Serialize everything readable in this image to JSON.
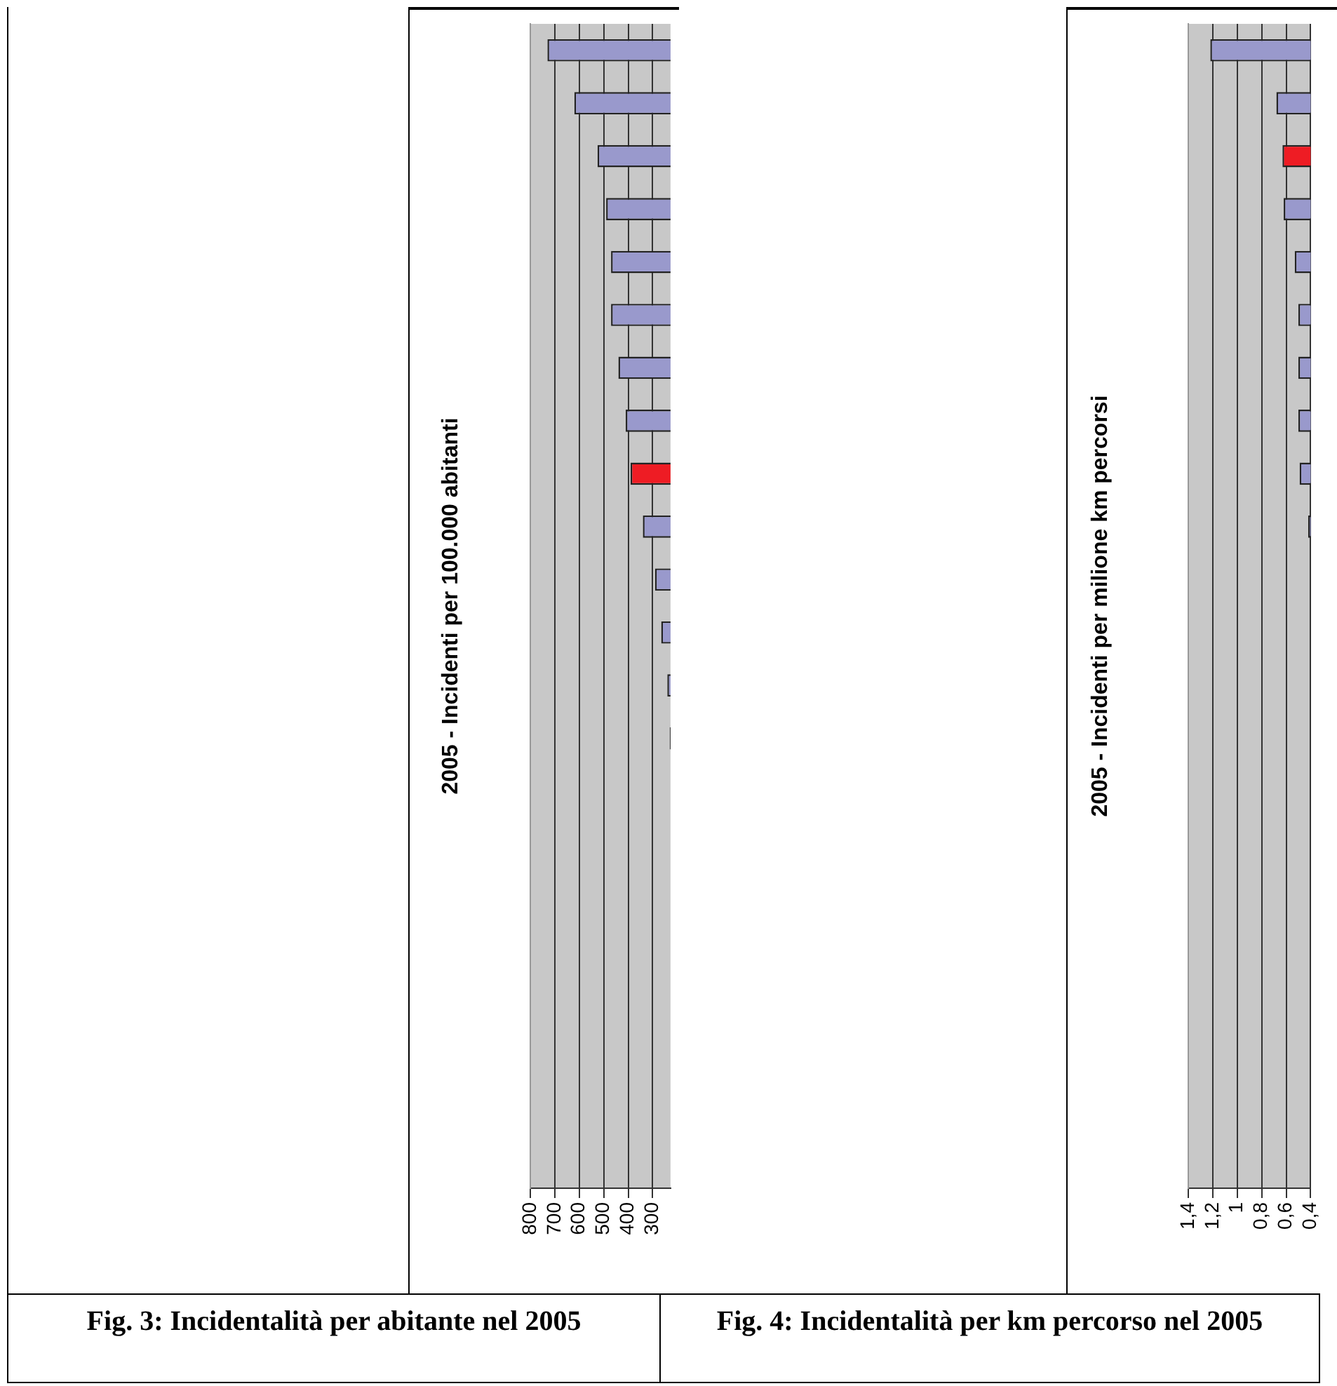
{
  "chart_data": [
    {
      "type": "bar",
      "orientation": "horizontal",
      "ylabel": "2005 - Incidenti per 100.000 abitanti",
      "annotations": [
        "Fig. 3: Incidentalità per abitante nel 2005"
      ],
      "categories": [
        null,
        null,
        null,
        null,
        null,
        null,
        null,
        null,
        null,
        null,
        null,
        null,
        null,
        null,
        null,
        null,
        null,
        null,
        null,
        null,
        null,
        null
      ],
      "values": [
        730,
        620,
        525,
        490,
        470,
        470,
        440,
        410,
        390,
        340,
        290,
        265,
        240,
        230,
        null,
        null,
        null,
        null,
        null,
        null,
        null,
        null
      ],
      "colors": [
        "#9999cc",
        "#9999cc",
        "#9999cc",
        "#9999cc",
        "#9999cc",
        "#9999cc",
        "#9999cc",
        "#9999cc",
        "#ee1c24",
        "#9999cc",
        "#9999cc",
        "#9999cc",
        "#9999cc",
        "#9999cc",
        "#9999cc",
        "#9999cc",
        "#9999cc",
        "#9999cc",
        "#9999cc",
        "#9999cc",
        "#9999cc",
        "#9999cc"
      ],
      "xlim": [
        800,
        227
      ],
      "xticks": [
        800,
        700,
        600,
        500,
        400,
        300
      ],
      "grid": "x",
      "tick_labels": "x"
    },
    {
      "type": "bar",
      "orientation": "horizontal",
      "ylabel": "2005 - Incidenti per milione km percorsi",
      "annotations": [
        "Fig. 4: Incidentalità per km percorso nel 2005"
      ],
      "categories": [
        null,
        null,
        null,
        null,
        null,
        null,
        null,
        null,
        null,
        null,
        null,
        null,
        null,
        null,
        null,
        null,
        null,
        null,
        null,
        null,
        null,
        null
      ],
      "values": [
        1.22,
        0.68,
        0.63,
        0.62,
        0.53,
        0.5,
        0.5,
        0.5,
        0.49,
        0.42,
        null,
        null,
        null,
        null,
        null,
        null,
        null,
        null,
        null,
        null,
        null,
        null
      ],
      "colors": [
        "#9999cc",
        "#9999cc",
        "#ee1c24",
        "#9999cc",
        "#9999cc",
        "#9999cc",
        "#9999cc",
        "#9999cc",
        "#9999cc",
        "#9999cc",
        "#9999cc",
        "#9999cc",
        "#9999cc",
        "#9999cc",
        "#9999cc",
        "#9999cc",
        "#9999cc",
        "#9999cc",
        "#9999cc",
        "#9999cc",
        "#9999cc",
        "#9999cc"
      ],
      "xlim": [
        1.4,
        0.4
      ],
      "xticks": [
        {
          "value": 1.4,
          "label": "1,4"
        },
        {
          "value": 1.2,
          "label": "1,2"
        },
        {
          "value": 1,
          "label": "1"
        },
        {
          "value": 0.8,
          "label": "0,8"
        },
        {
          "value": 0.6,
          "label": "0,6"
        },
        {
          "value": 0.4,
          "label": "0,4"
        }
      ],
      "grid": "x",
      "tick_labels": "x"
    }
  ]
}
